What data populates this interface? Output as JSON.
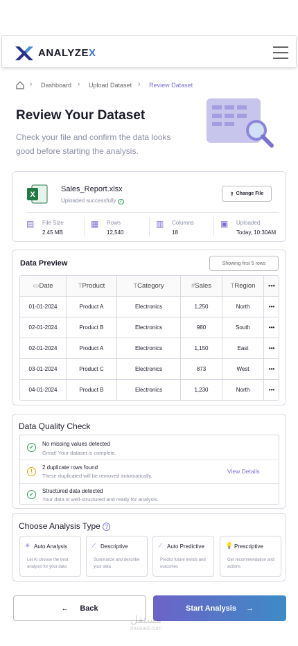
{
  "header": {
    "logo_text": "ANALYZE",
    "logo_accent": "X"
  },
  "breadcrumb": [
    "Dashboard",
    "Upload Dataset",
    "Review Dataset"
  ],
  "page": {
    "title": "Review Your Dataset",
    "description": "Check your file and confirm the data looks good before starting the analysis."
  },
  "file": {
    "name": "Sales_Report.xlsx",
    "status": "Uploaded successfully",
    "change_button": "Change File",
    "stats": [
      {
        "label": "File Size",
        "value": "2.45 MB"
      },
      {
        "label": "Rows",
        "value": "12,540"
      },
      {
        "label": "Columns",
        "value": "18"
      },
      {
        "label": "Uploaded",
        "value": "Today, 10:30AM"
      }
    ]
  },
  "preview": {
    "title": "Data Preview",
    "badge": "Showing first 5 rows",
    "columns": [
      "Date",
      "Product",
      "Category",
      "Sales",
      "Region"
    ],
    "rows": [
      [
        "01-01-2024",
        "Product A",
        "Electronics",
        "1,250",
        "North"
      ],
      [
        "02-01-2024",
        "Product B",
        "Electronics",
        "980",
        "South"
      ],
      [
        "02-01-2024",
        "Product A",
        "Electronics",
        "1,150",
        "East"
      ],
      [
        "03-01-2024",
        "Product C",
        "Electronics",
        "873",
        "West"
      ],
      [
        "04-01-2024",
        "Product B",
        "Electronics",
        "1,230",
        "North"
      ]
    ]
  },
  "quality": {
    "title": "Data Quality Check",
    "link": "View Details",
    "items": [
      {
        "title": "No missing values detected",
        "detail": "Great! Your dataset is complete."
      },
      {
        "title": "2 duplicate rows found",
        "detail": "These duplicated will be removed automatically."
      },
      {
        "title": "Structured data detected",
        "detail": "Your data is well-structured and ready for analysis."
      }
    ]
  },
  "analysis": {
    "title": "Choose Analysis Type",
    "options": [
      {
        "name": "Auto Analysis",
        "description": "Let AI choose the best analysis for your data"
      },
      {
        "name": "Descriptive",
        "description": "Summarize and describe your data"
      },
      {
        "name": "Auto Predictive",
        "description": "Predict future trends and outcomes"
      },
      {
        "name": "Prescriptive",
        "description": "Get recommendation and actions"
      }
    ]
  },
  "actions": {
    "back": "Back",
    "start": "Start Analysis"
  },
  "watermark": [
    "مستقل",
    "mostaql.com"
  ]
}
